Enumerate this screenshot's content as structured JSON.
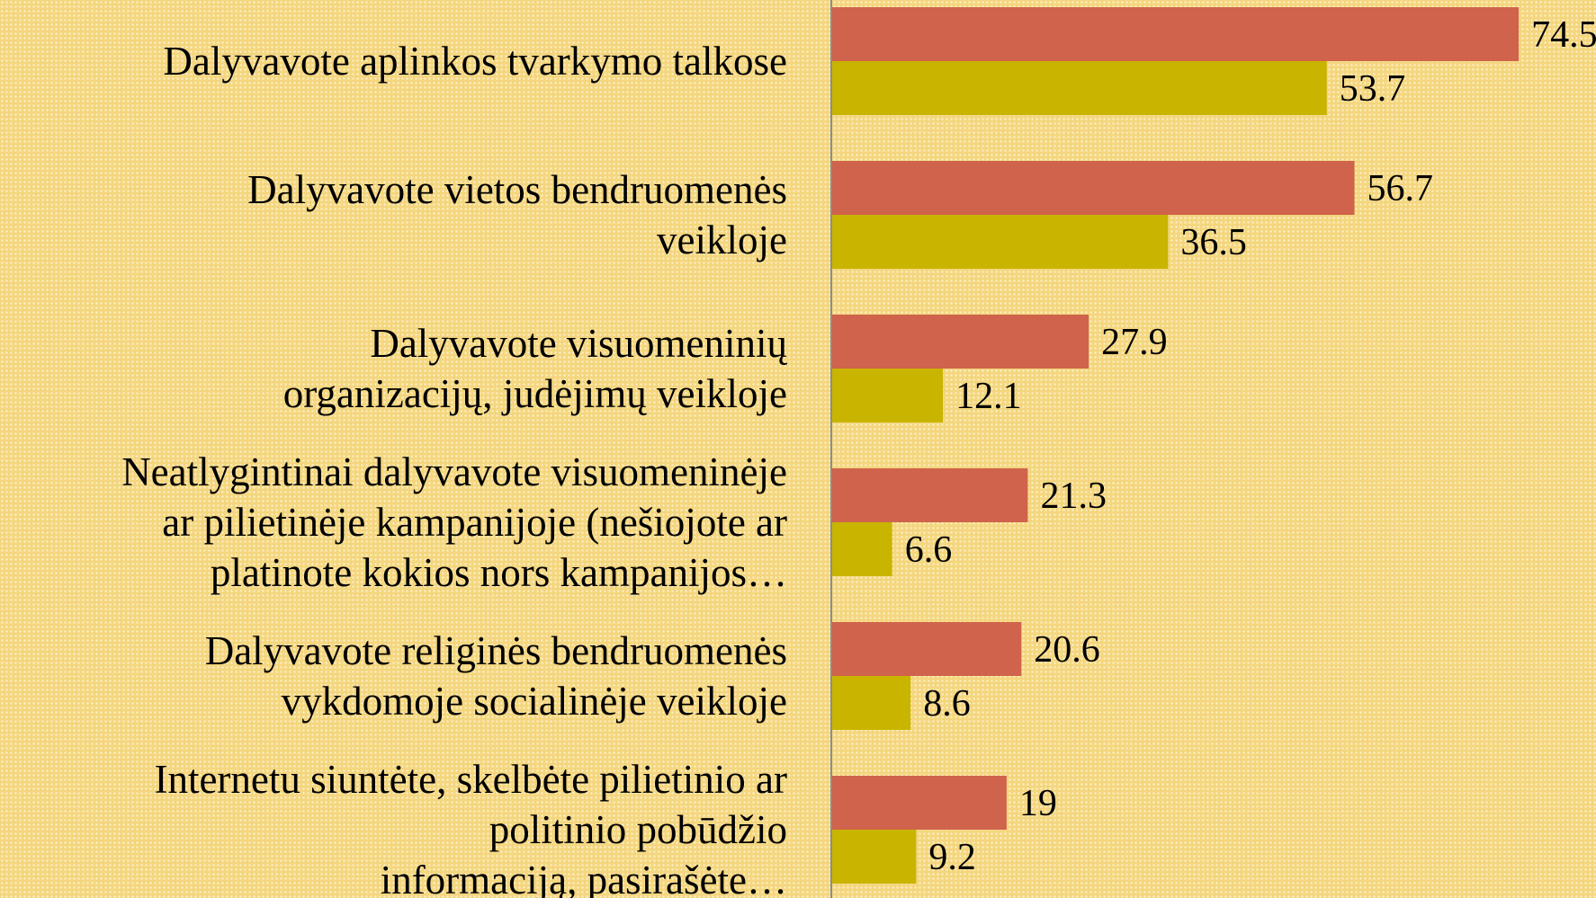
{
  "chart_data": {
    "type": "hbar",
    "categories": [
      "Dalyvavote aplinkos tvarkymo talkose",
      "Dalyvavote vietos bendruomenės\nveikloje",
      "Dalyvavote visuomeninių\norganizacijų, judėjimų veikloje",
      "Neatlygintinai dalyvavote visuomeninėje\nar pilietinėje kampanijoje (nešiojote ar\nplatinote kokios nors kampanijos…",
      "Dalyvavote religinės bendruomenės\nvykdomoje socialinėje veikloje",
      "Internetu siuntėte, skelbėte pilietinio ar\npolitinio pobūdžio\ninformaciją,  pasirašėte…"
    ],
    "series": [
      {
        "color": "#d0634b",
        "values": [
          74.5,
          56.7,
          27.9,
          21.3,
          20.6,
          19
        ]
      },
      {
        "color": "#c9b400",
        "values": [
          53.7,
          36.5,
          12.1,
          6.6,
          8.6,
          9.2
        ]
      }
    ],
    "xlim": [
      0,
      82
    ]
  }
}
